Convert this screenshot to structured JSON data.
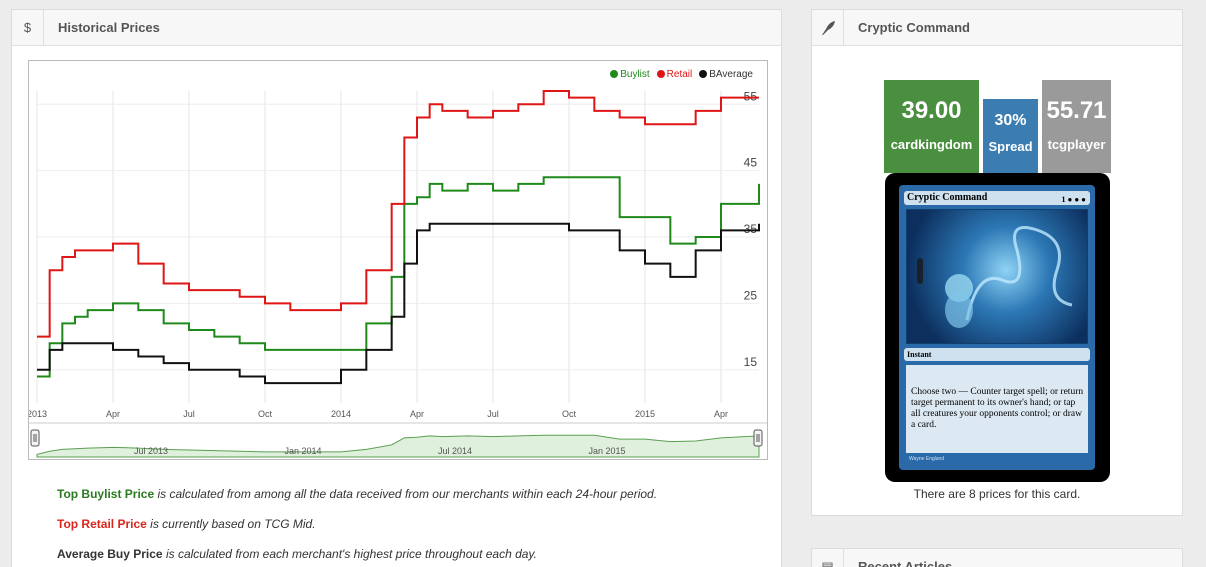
{
  "left_panel": {
    "icon": "$",
    "title": "Historical Prices"
  },
  "chart_data": {
    "type": "line",
    "legend": [
      "Buylist",
      "Retail",
      "BAverage"
    ],
    "colors": {
      "Buylist": "#1f8a1a",
      "Retail": "#e01515",
      "BAverage": "#111111"
    },
    "x_tick_labels": [
      "2013",
      "Apr",
      "Jul",
      "Oct",
      "2014",
      "Apr",
      "Jul",
      "Oct",
      "2015",
      "Apr"
    ],
    "y_tick_labels": [
      "15",
      "25",
      "35",
      "45",
      "55"
    ],
    "ylim": [
      10,
      57
    ],
    "navigator_labels": [
      "Jul 2013",
      "Jan 2014",
      "Jul 2014",
      "Jan 2015"
    ],
    "x": [
      0,
      0.5,
      1,
      1.5,
      2,
      3,
      4,
      5,
      6,
      7,
      8,
      9,
      10,
      11,
      12,
      13,
      14,
      14.5,
      15,
      15.5,
      16,
      17,
      18,
      19,
      20,
      21,
      22,
      23,
      24,
      25,
      26,
      27,
      28.5
    ],
    "series": [
      {
        "name": "Buylist",
        "values": [
          14,
          19,
          22,
          23,
          24,
          25,
          24,
          22,
          21,
          20,
          19,
          18,
          18,
          18,
          18,
          22,
          29,
          40,
          41,
          43,
          42,
          43,
          42,
          43,
          44,
          44,
          44,
          38,
          38,
          34,
          35,
          40,
          43
        ]
      },
      {
        "name": "Retail",
        "values": [
          20,
          30,
          32,
          33,
          33,
          34,
          31,
          28,
          27,
          27,
          26,
          25,
          24,
          24,
          25,
          30,
          40,
          50,
          53,
          55,
          54,
          53,
          54,
          55,
          57,
          56,
          54,
          53,
          52,
          52,
          54,
          56,
          56
        ]
      },
      {
        "name": "BAverage",
        "values": [
          15,
          18,
          19,
          19,
          19,
          18,
          17,
          16,
          15,
          15,
          14,
          13,
          13,
          13,
          15,
          18,
          23,
          31,
          36,
          37,
          37,
          37,
          37,
          37,
          37,
          36,
          36,
          33,
          31,
          29,
          33,
          36,
          37
        ]
      }
    ]
  },
  "notes": [
    {
      "label": "Top Buylist Price",
      "color": "green",
      "text": " is calculated from among all the data received from our merchants within each 24-hour period."
    },
    {
      "label": "Top Retail Price",
      "color": "red",
      "text": " is currently based on TCG Mid."
    },
    {
      "label": "Average Buy Price",
      "color": "black",
      "text": " is calculated from each merchant's highest price throughout each day."
    }
  ],
  "right_panel": {
    "icon": "feather-icon",
    "title": "Cryptic Command",
    "prices": [
      {
        "value": "39.00",
        "label": "cardkingdom",
        "color": "#4a8f3f"
      },
      {
        "value": "30%",
        "label": "Spread",
        "color": "#3b7db0"
      },
      {
        "value": "55.71",
        "label": "tcgplayer",
        "color": "#9a9a9a"
      }
    ],
    "card": {
      "name": "Cryptic Command",
      "cost": "1 ● ● ●",
      "type": "Instant",
      "rules_text": "Choose two — Counter target spell; or return target permanent to its owner's hand; or tap all creatures your opponents control; or draw a card.",
      "artist": "Wayne England"
    },
    "caption": "There are 8 prices for this card."
  },
  "bottom_panel": {
    "title": "Recent Articles"
  }
}
